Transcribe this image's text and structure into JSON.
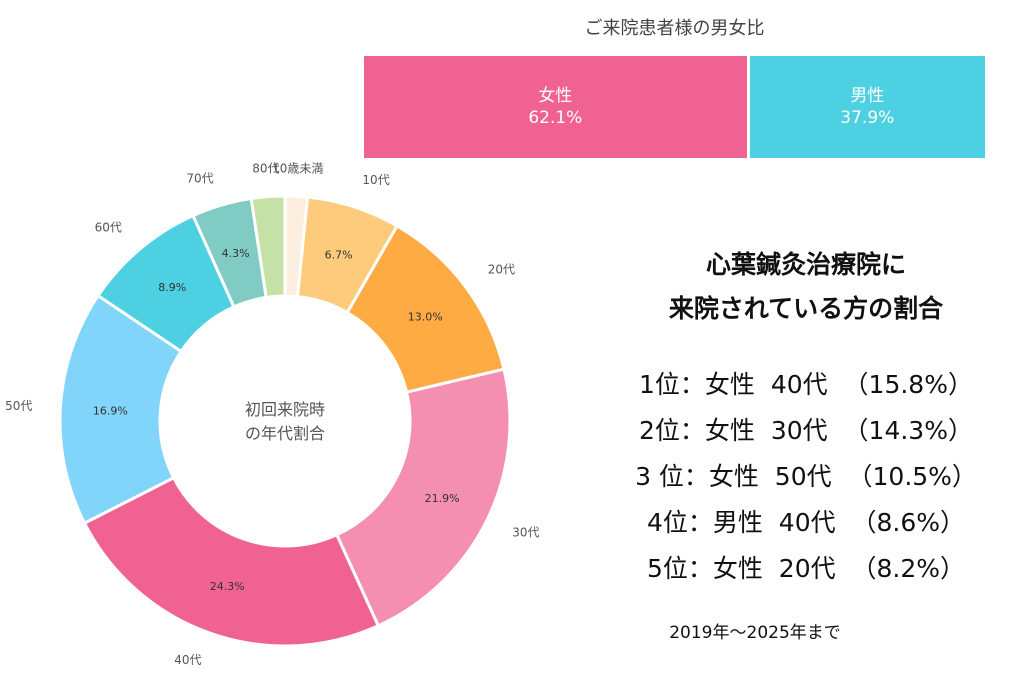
{
  "gender_ratio": {
    "title": "ご来院患者様の男女比",
    "segments": [
      {
        "label": "女性",
        "value_text": "62.1%",
        "value": 62.1,
        "color": "#f06292"
      },
      {
        "label": "男性",
        "value_text": "37.9%",
        "value": 37.9,
        "color": "#4dd0e1"
      }
    ]
  },
  "headline": {
    "line1": "心葉鍼灸治療院に",
    "line2": "来院されている方の割合"
  },
  "rankings": [
    {
      "text": "1位：女性  40代  （15.8%）"
    },
    {
      "text": "2位：女性  30代  （14.3%）"
    },
    {
      "text": "3 位：女性  50代  （10.5%）"
    },
    {
      "text": "4位：男性  40代  （8.6%）"
    },
    {
      "text": "5位：女性  20代  （8.2%）"
    }
  ],
  "period": "2019年～2025年まで",
  "chart_data": {
    "type": "pie",
    "variant": "donut",
    "title": "初回来院時の年代割合",
    "center_label_lines": [
      "初回来院時",
      "の年代割合"
    ],
    "start": "top",
    "direction": "clockwise",
    "slices": [
      {
        "category": "10歳未満",
        "value": 1.6,
        "label": "",
        "color": "#fdefdf"
      },
      {
        "category": "10代",
        "value": 6.7,
        "label": "6.7%",
        "color": "#fecb7d"
      },
      {
        "category": "20代",
        "value": 13.0,
        "label": "13.0%",
        "color": "#feab44"
      },
      {
        "category": "30代",
        "value": 21.9,
        "label": "21.9%",
        "color": "#f48fb1"
      },
      {
        "category": "40代",
        "value": 24.3,
        "label": "24.3%",
        "color": "#f06292"
      },
      {
        "category": "50代",
        "value": 16.9,
        "label": "16.9%",
        "color": "#81d4fa"
      },
      {
        "category": "60代",
        "value": 8.9,
        "label": "8.9%",
        "color": "#4dd0e1"
      },
      {
        "category": "70代",
        "value": 4.3,
        "label": "4.3%",
        "color": "#80cbc4"
      },
      {
        "category": "80代",
        "value": 2.4,
        "label": "",
        "color": "#c5e1a5"
      }
    ]
  }
}
